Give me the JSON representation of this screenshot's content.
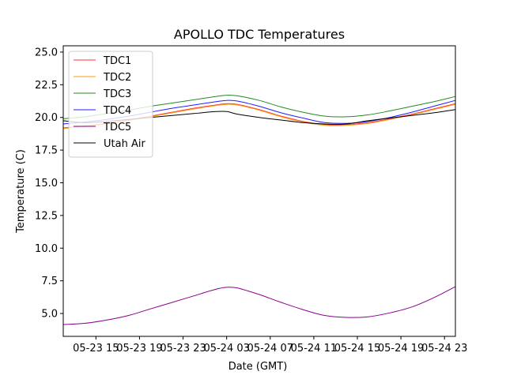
{
  "chart_data": {
    "type": "line",
    "title": "APOLLO TDC Temperatures",
    "xlabel": "Date (GMT)",
    "ylabel": "Temperature (C)",
    "x_units": "hours since 05-23 12:00 GMT",
    "xlim": [
      0,
      36
    ],
    "ylim": [
      3.25,
      25.48
    ],
    "grid": false,
    "legend_position": "top-left",
    "x_ticks": [
      {
        "value": 3,
        "label": "05-23 15"
      },
      {
        "value": 7,
        "label": "05-23 19"
      },
      {
        "value": 11,
        "label": "05-23 23"
      },
      {
        "value": 15,
        "label": "05-24 03"
      },
      {
        "value": 19,
        "label": "05-24 07"
      },
      {
        "value": 23,
        "label": "05-24 11"
      },
      {
        "value": 27,
        "label": "05-24 15"
      },
      {
        "value": 31,
        "label": "05-24 19"
      },
      {
        "value": 35,
        "label": "05-24 23"
      }
    ],
    "y_ticks": [
      {
        "value": 5.0,
        "label": "5.0"
      },
      {
        "value": 7.5,
        "label": "7.5"
      },
      {
        "value": 10.0,
        "label": "10.0"
      },
      {
        "value": 12.5,
        "label": "12.5"
      },
      {
        "value": 15.0,
        "label": "15.0"
      },
      {
        "value": 17.5,
        "label": "17.5"
      },
      {
        "value": 20.0,
        "label": "20.0"
      },
      {
        "value": 22.5,
        "label": "22.5"
      },
      {
        "value": 25.0,
        "label": "25.0"
      }
    ],
    "x": [
      0,
      2,
      4,
      6,
      8,
      10,
      12,
      14,
      15,
      16,
      18,
      20,
      22,
      24,
      26,
      28,
      30,
      32,
      34,
      36
    ],
    "series": [
      {
        "name": "TDC1",
        "color": "#ff3030",
        "values": [
          19.2,
          19.35,
          19.55,
          19.8,
          20.1,
          20.4,
          20.7,
          20.95,
          21.05,
          21.0,
          20.6,
          20.1,
          19.7,
          19.45,
          19.45,
          19.6,
          19.9,
          20.25,
          20.65,
          21.05
        ]
      },
      {
        "name": "TDC2",
        "color": "#ff9a1a",
        "values": [
          19.15,
          19.3,
          19.5,
          19.75,
          20.05,
          20.35,
          20.65,
          20.9,
          21.0,
          20.95,
          20.55,
          20.05,
          19.65,
          19.4,
          19.4,
          19.55,
          19.85,
          20.2,
          20.6,
          21.0
        ]
      },
      {
        "name": "TDC3",
        "color": "#228b22",
        "values": [
          19.9,
          20.05,
          20.3,
          20.55,
          20.85,
          21.1,
          21.35,
          21.6,
          21.7,
          21.65,
          21.3,
          20.8,
          20.4,
          20.1,
          20.05,
          20.2,
          20.5,
          20.85,
          21.2,
          21.6
        ]
      },
      {
        "name": "TDC4",
        "color": "#1f1fff",
        "values": [
          19.5,
          19.65,
          19.85,
          20.1,
          20.4,
          20.7,
          20.95,
          21.2,
          21.3,
          21.25,
          20.85,
          20.35,
          19.95,
          19.6,
          19.55,
          19.7,
          20.0,
          20.4,
          20.85,
          21.3
        ]
      },
      {
        "name": "TDC5",
        "color": "#8b008b",
        "values": [
          4.15,
          4.25,
          4.5,
          4.85,
          5.35,
          5.85,
          6.35,
          6.85,
          7.0,
          6.95,
          6.45,
          5.85,
          5.3,
          4.85,
          4.7,
          4.75,
          5.05,
          5.5,
          6.2,
          7.05
        ]
      },
      {
        "name": "Utah Air",
        "color": "#000000",
        "values": [
          19.75,
          19.6,
          19.7,
          19.85,
          20.0,
          20.15,
          20.3,
          20.45,
          20.45,
          20.25,
          20.0,
          19.8,
          19.6,
          19.5,
          19.5,
          19.75,
          19.95,
          20.15,
          20.35,
          20.6
        ]
      }
    ]
  }
}
